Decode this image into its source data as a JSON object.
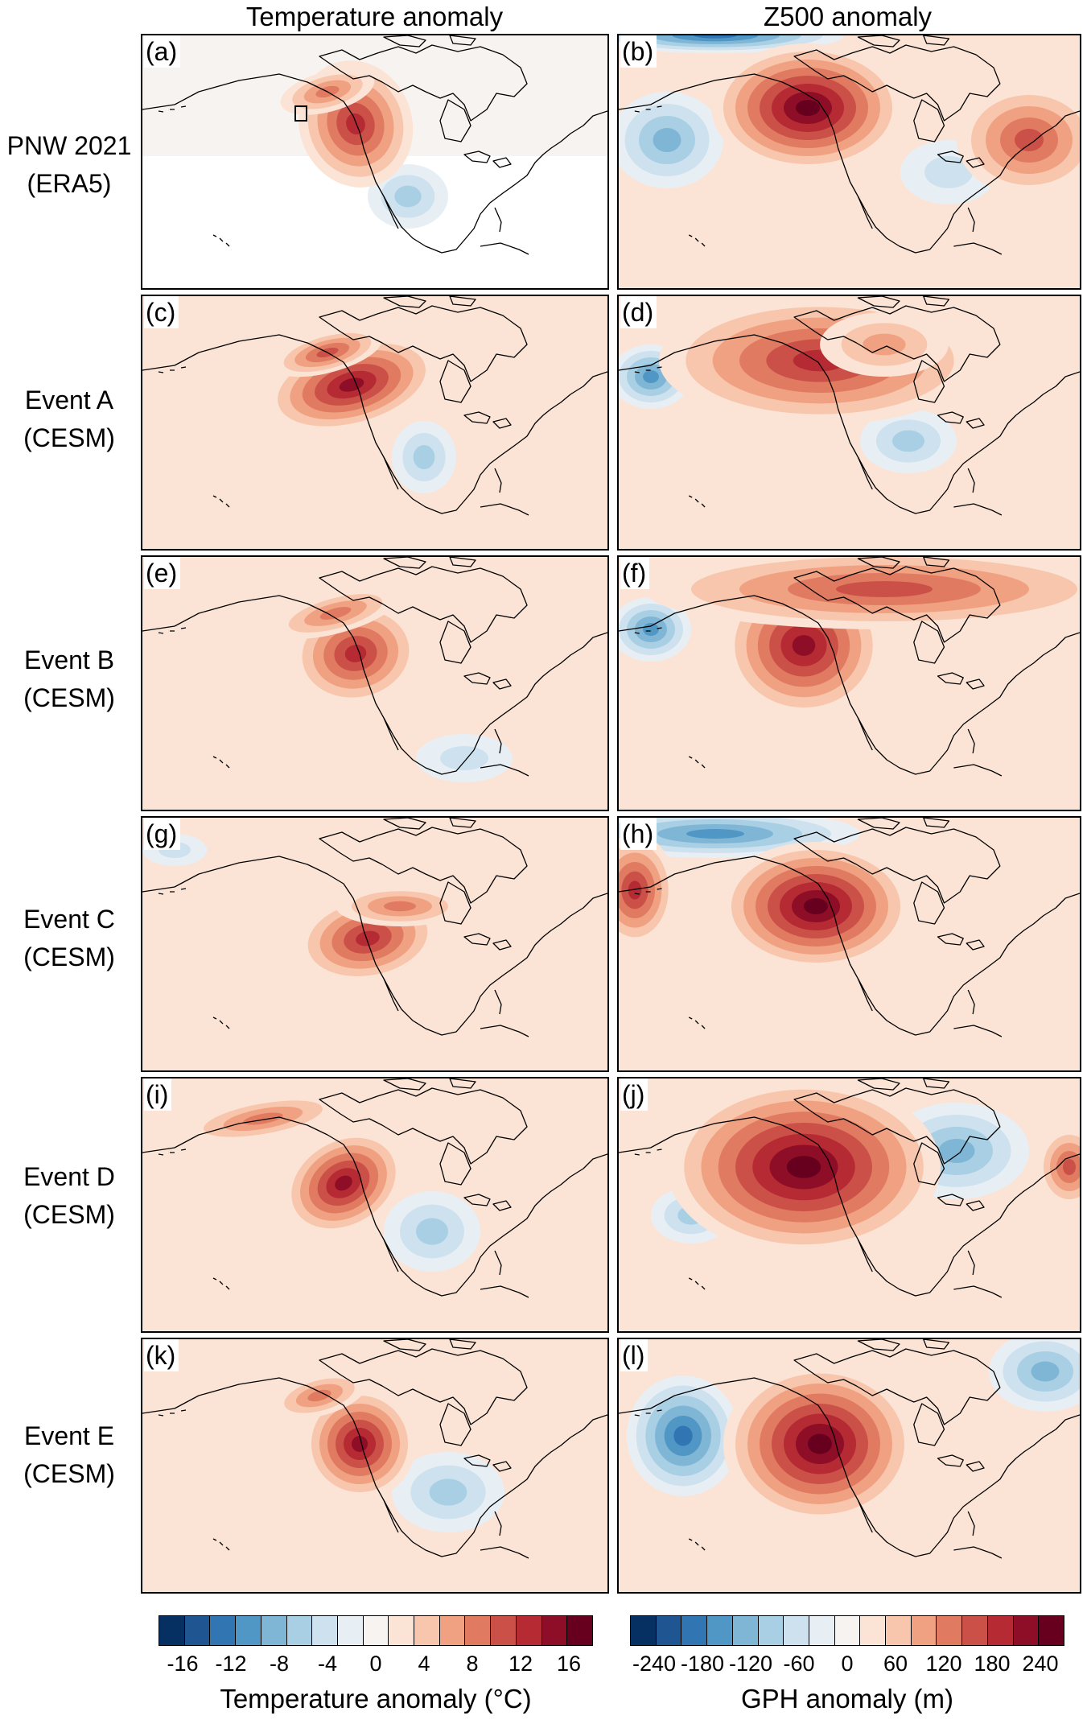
{
  "column_titles": {
    "left": "Temperature anomaly",
    "right": "Z500 anomaly"
  },
  "rows": [
    {
      "line1": "PNW 2021",
      "line2": "(ERA5)",
      "left_panel": "(a)",
      "right_panel": "(b)"
    },
    {
      "line1": "Event A",
      "line2": "(CESM)",
      "left_panel": "(c)",
      "right_panel": "(d)"
    },
    {
      "line1": "Event B",
      "line2": "(CESM)",
      "left_panel": "(e)",
      "right_panel": "(f)"
    },
    {
      "line1": "Event C",
      "line2": "(CESM)",
      "left_panel": "(g)",
      "right_panel": "(h)"
    },
    {
      "line1": "Event D",
      "line2": "(CESM)",
      "left_panel": "(i)",
      "right_panel": "(j)"
    },
    {
      "line1": "Event E",
      "line2": "(CESM)",
      "left_panel": "(k)",
      "right_panel": "(l)"
    }
  ],
  "colorbars": {
    "temperature": {
      "title": "Temperature anomaly (°C)",
      "ticks": [
        "-16",
        "-12",
        "-8",
        "-4",
        "0",
        "4",
        "8",
        "12",
        "16"
      ],
      "range": [
        -18,
        18
      ]
    },
    "gph": {
      "title": "GPH anomaly (m)",
      "ticks": [
        "-240",
        "-180",
        "-120",
        "-60",
        "0",
        "60",
        "120",
        "180",
        "240"
      ],
      "range": [
        -270,
        270
      ]
    }
  },
  "palette": [
    "#053061",
    "#1f5591",
    "#3175b3",
    "#5197c6",
    "#7fb6d6",
    "#a8cfe4",
    "#cde2ee",
    "#e8eff4",
    "#f7f3f0",
    "#fbe4d6",
    "#f7c6ac",
    "#f0a182",
    "#e07b62",
    "#cb5148",
    "#b52a33",
    "#8d0e26",
    "#67001f"
  ]
}
